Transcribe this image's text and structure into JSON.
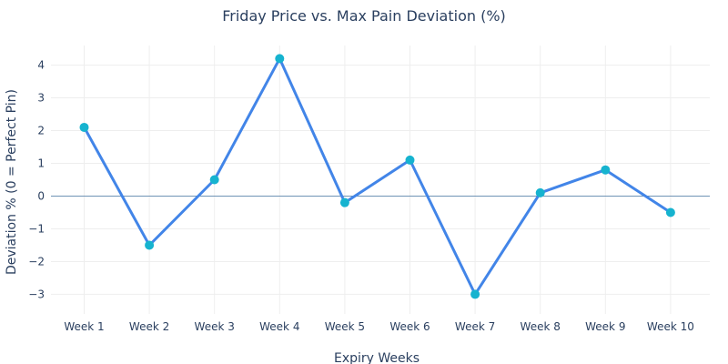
{
  "chart_data": {
    "type": "line",
    "title": "Friday Price vs. Max Pain Deviation (%)",
    "xlabel": "Expiry Weeks",
    "ylabel": "Deviation % (0 = Perfect Pin)",
    "categories": [
      "Week 1",
      "Week 2",
      "Week 3",
      "Week 4",
      "Week 5",
      "Week 6",
      "Week 7",
      "Week 8",
      "Week 9",
      "Week 10"
    ],
    "series": [
      {
        "values": [
          2.1,
          -1.5,
          0.5,
          4.2,
          -0.2,
          1.1,
          -3.0,
          0.1,
          0.8,
          -0.5
        ]
      }
    ],
    "yticks": [
      4,
      3,
      2,
      1,
      0,
      -1,
      -2,
      -3
    ],
    "ytick_labels": [
      "4",
      "3",
      "2",
      "1",
      "0",
      "−1",
      "−2",
      "−3"
    ],
    "ylim": [
      -3.6,
      4.6
    ],
    "grid": true,
    "zero_line": true,
    "colors": {
      "line": "#4285e8",
      "marker": "#16b3cf",
      "zero_line": "#6f93b5",
      "grid": "#eeeeee",
      "text": "#2a3f5f"
    }
  }
}
